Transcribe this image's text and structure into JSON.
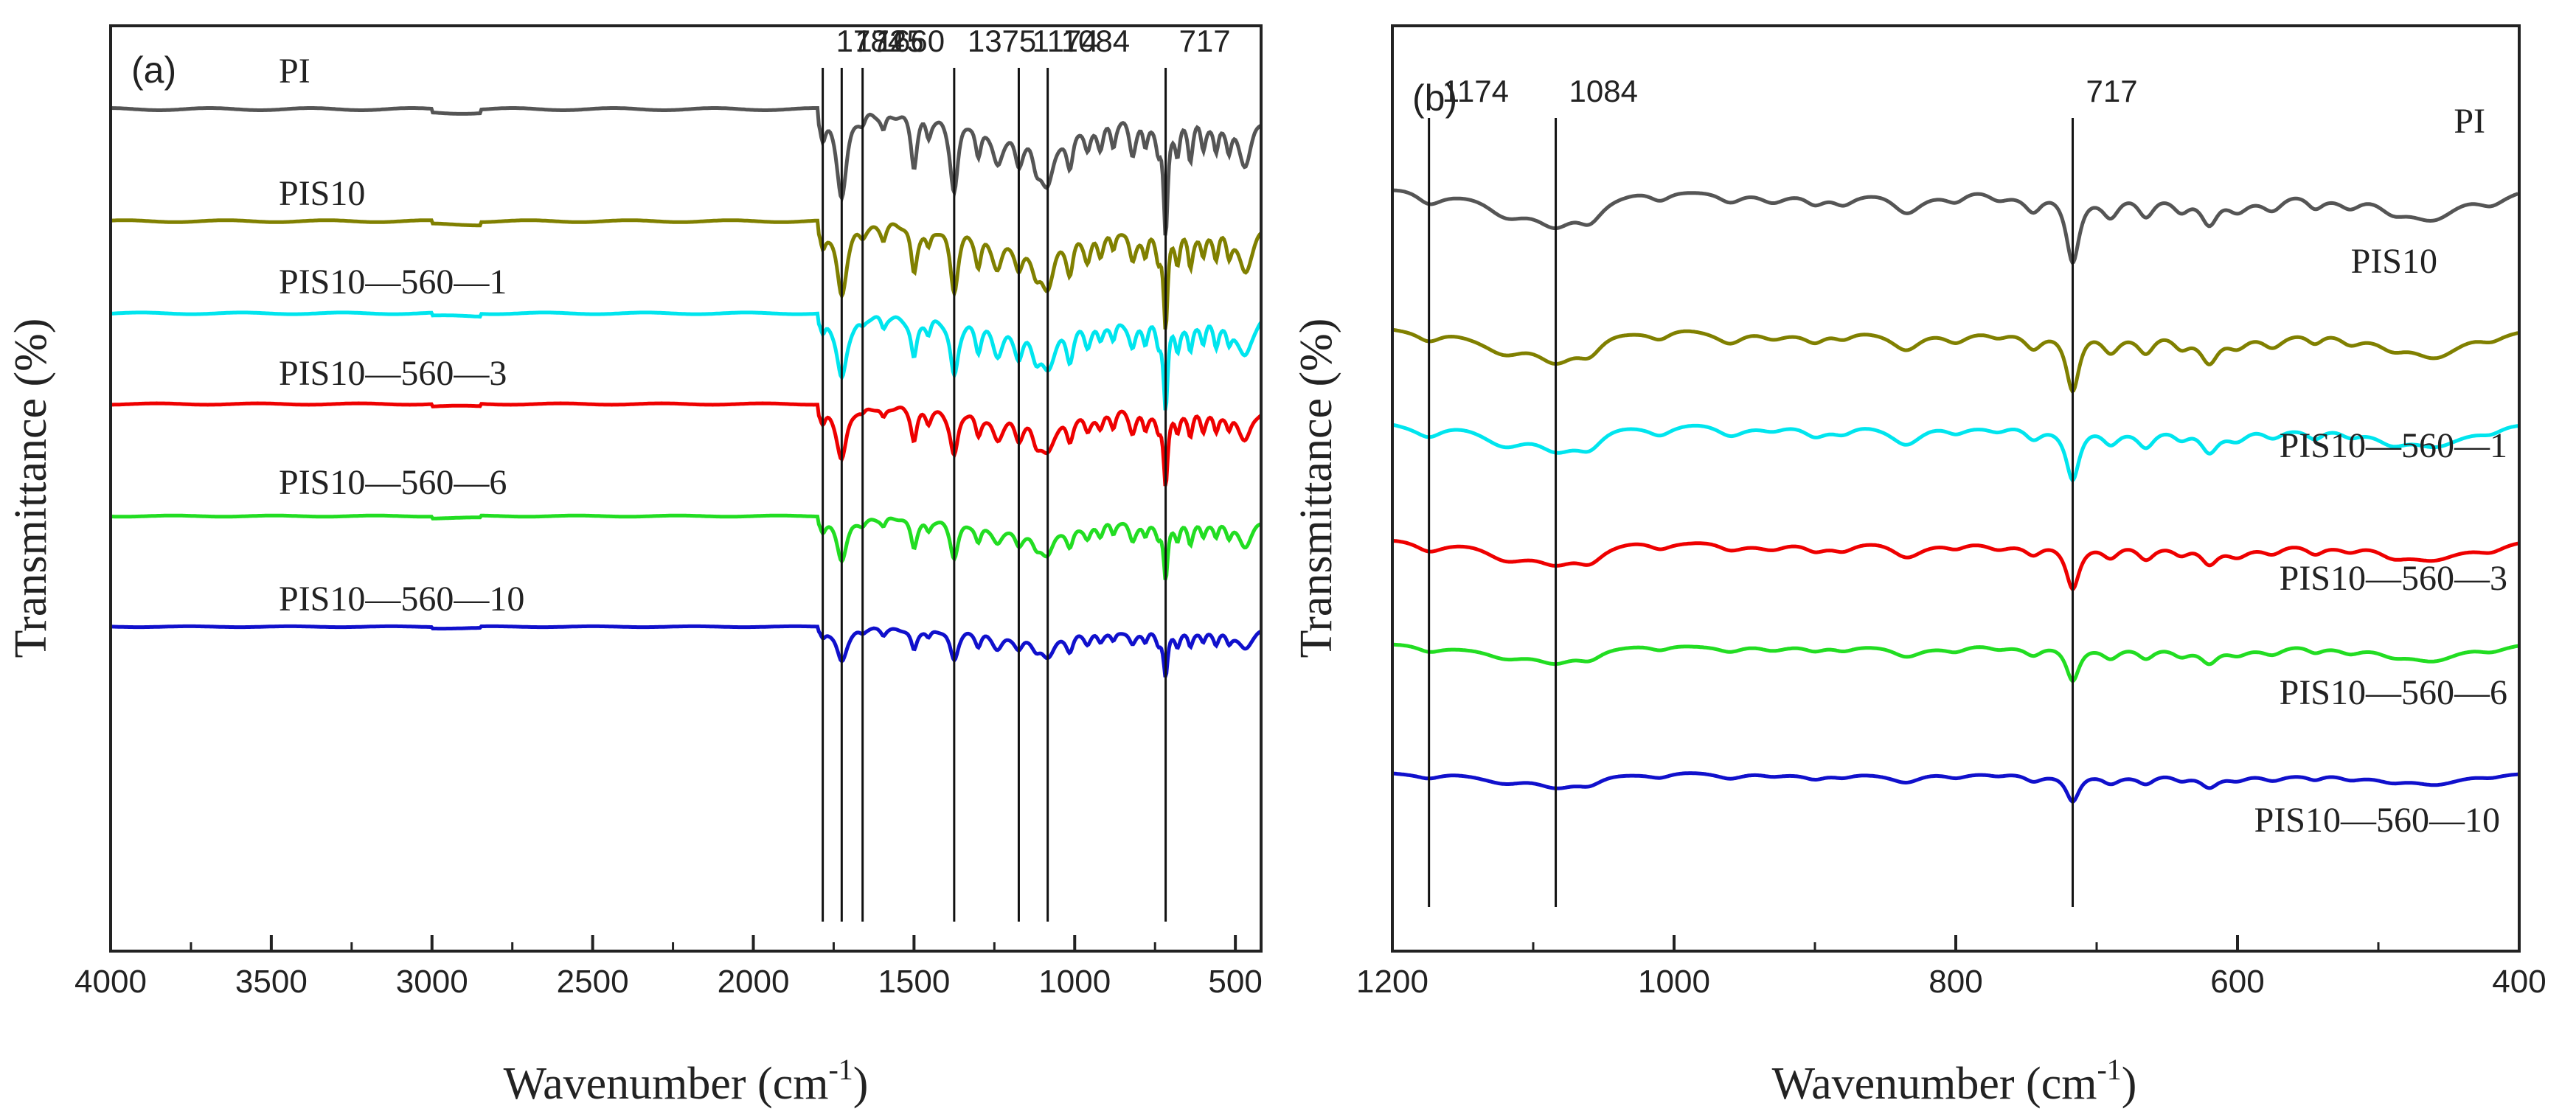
{
  "chart_data": [
    {
      "type": "line",
      "panel_label": "(a)",
      "title": "",
      "xlabel": "Wavenumber (cm",
      "xlabel_sup": "-1",
      "xlabel_close": ")",
      "ylabel": "Transmittance (%)",
      "xlim": [
        4000,
        420
      ],
      "xticks": [
        4000,
        3500,
        3000,
        2500,
        2000,
        1500,
        1000,
        500
      ],
      "xtick_labels": [
        "4000",
        "3500",
        "3000",
        "2500",
        "2000",
        "1500",
        "1000",
        "500"
      ],
      "grid": false,
      "series": [
        {
          "name": "PI",
          "color": "#555555",
          "offset": 6.0
        },
        {
          "name": "PIS10",
          "color": "#808000",
          "offset": 5.0
        },
        {
          "name": "PIS10—560—1",
          "color": "#00e5ee",
          "offset": 4.0
        },
        {
          "name": "PIS10—560—3",
          "color": "#ee0000",
          "offset": 3.0
        },
        {
          "name": "PIS10—560—6",
          "color": "#22dd22",
          "offset": 2.0
        },
        {
          "name": "PIS10—560—10",
          "color": "#1010cc",
          "offset": 1.0
        }
      ],
      "peaks": [
        {
          "x": 1784,
          "label": "1784"
        },
        {
          "x": 1725,
          "label": "1725"
        },
        {
          "x": 1660,
          "label": "1660"
        },
        {
          "x": 1375,
          "label": "1375"
        },
        {
          "x": 1174,
          "label": "1174"
        },
        {
          "x": 1084,
          "label": "1084"
        },
        {
          "x": 717,
          "label": "717"
        }
      ]
    },
    {
      "type": "line",
      "panel_label": "(b)",
      "title": "",
      "xlabel": "Wavenumber (cm",
      "xlabel_sup": "-1",
      "xlabel_close": ")",
      "ylabel": "Transmittance (%)",
      "xlim": [
        1200,
        400
      ],
      "xticks": [
        1200,
        1000,
        800,
        600,
        400
      ],
      "xtick_labels": [
        "1200",
        "1000",
        "800",
        "600",
        "400"
      ],
      "grid": false,
      "series": [
        {
          "name": "PI",
          "color": "#555555",
          "offset": 6.0
        },
        {
          "name": "PIS10",
          "color": "#808000",
          "offset": 5.0
        },
        {
          "name": "PIS10—560—1",
          "color": "#00e5ee",
          "offset": 4.0
        },
        {
          "name": "PIS10—560—3",
          "color": "#ee0000",
          "offset": 3.0
        },
        {
          "name": "PIS10—560—6",
          "color": "#22dd22",
          "offset": 2.0
        },
        {
          "name": "PIS10—560—10",
          "color": "#1010cc",
          "offset": 1.0
        }
      ],
      "peaks": [
        {
          "x": 1174,
          "label": "1174"
        },
        {
          "x": 1084,
          "label": "1084"
        },
        {
          "x": 717,
          "label": "717"
        }
      ]
    }
  ]
}
